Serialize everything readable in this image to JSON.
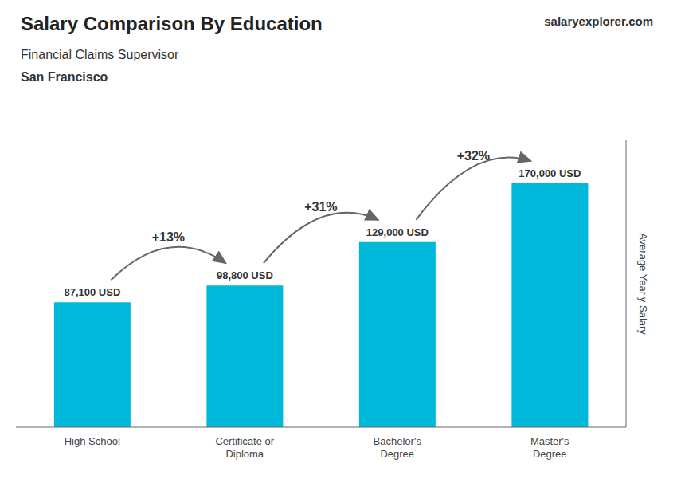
{
  "chart_data": {
    "type": "bar",
    "title": "Salary Comparison By Education",
    "subtitle": "Financial Claims Supervisor",
    "city": "San Francisco",
    "brand": [
      "salary",
      "explorer",
      ".com"
    ],
    "ylabel": "Average Yearly Salary",
    "categories": [
      "High School",
      "Certificate or\nDiploma",
      "Bachelor's\nDegree",
      "Master's\nDegree"
    ],
    "values": [
      87100,
      98800,
      129000,
      170000
    ],
    "value_labels": [
      "87,100 USD",
      "98,800 USD",
      "129,000 USD",
      "170,000 USD"
    ],
    "data_labels": true,
    "pct_labels": [
      "+13%",
      "+31%",
      "+32%"
    ],
    "color": "#00b8d9",
    "ylim": [
      0,
      200000
    ],
    "grid": false,
    "tick_labels": "x"
  }
}
